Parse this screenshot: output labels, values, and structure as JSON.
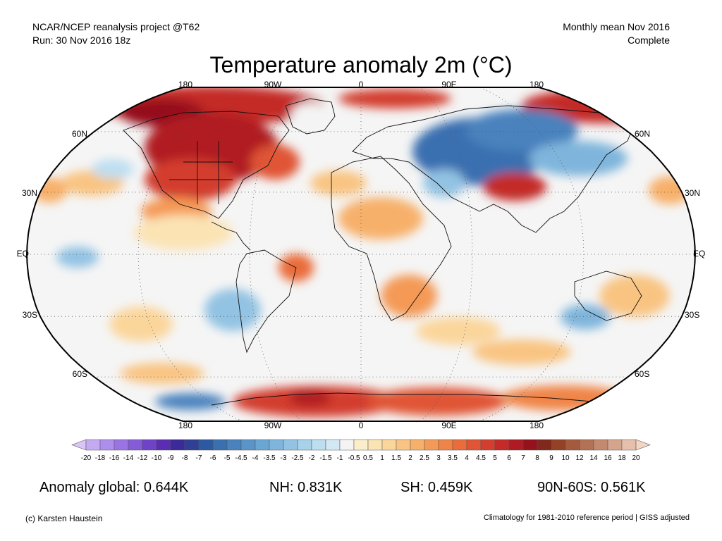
{
  "header": {
    "line1_left": "NCAR/NCEP reanalysis project @T62",
    "line2_left": "Run: 30 Nov 2016 18z",
    "line1_right": "Monthly mean Nov 2016",
    "line2_right": "Complete"
  },
  "title": "Temperature anomaly 2m (°C)",
  "map": {
    "projection": "robinson",
    "lon_labels_top": [
      "180",
      "90W",
      "0",
      "90E",
      "180"
    ],
    "lon_labels_bottom": [
      "180",
      "90W",
      "0",
      "90E",
      "180"
    ],
    "lat_labels_left": [
      "60N",
      "30N",
      "EQ",
      "30S",
      "60S"
    ],
    "lat_labels_right": [
      "60N",
      "30N",
      "EQ",
      "30S",
      "60S"
    ],
    "ocean_color": "#f5f5f5"
  },
  "colorbar": {
    "tick_labels": [
      "-20",
      "-18",
      "-16",
      "-14",
      "-12",
      "-10",
      "-9",
      "-8",
      "-7",
      "-6",
      "-5",
      "-4.5",
      "-4",
      "-3.5",
      "-3",
      "-2.5",
      "-2",
      "-1.5",
      "-1",
      "-0.5",
      "0.5",
      "1",
      "1.5",
      "2",
      "2.5",
      "3",
      "3.5",
      "4",
      "4.5",
      "5",
      "6",
      "7",
      "8",
      "9",
      "10",
      "12",
      "14",
      "16",
      "18",
      "20"
    ],
    "colors": [
      "#d9c6f7",
      "#c4aaf2",
      "#ae8eec",
      "#9b74e4",
      "#865bd8",
      "#6f42c8",
      "#5a2db4",
      "#3a2a9a",
      "#2e3f95",
      "#2c5aa2",
      "#3a6fb0",
      "#4a82bd",
      "#5a95c9",
      "#6aa6d4",
      "#7fb5dc",
      "#93c3e3",
      "#a8d1ea",
      "#bddef0",
      "#d2e9f5",
      "#f4f4f4",
      "#fbeecb",
      "#fbe3b4",
      "#fbd69b",
      "#f9c482",
      "#f7b06a",
      "#f49a56",
      "#f08446",
      "#ea6c3b",
      "#e05535",
      "#d33e2e",
      "#c42a27",
      "#b01a22",
      "#95111c",
      "#82271b",
      "#944126",
      "#a45a3d",
      "#b37156",
      "#c38a70",
      "#d4a48d",
      "#e6c0ab",
      "#f3d5c4"
    ]
  },
  "stats": {
    "global": "Anomaly global: 0.644K",
    "nh": "NH: 0.831K",
    "sh": "SH: 0.459K",
    "arctic": "90N-60S: 0.561K"
  },
  "footer": {
    "left": "(c) Karsten Haustein",
    "right": "Climatology for 1981-2010 reference period | GISS adjusted"
  }
}
